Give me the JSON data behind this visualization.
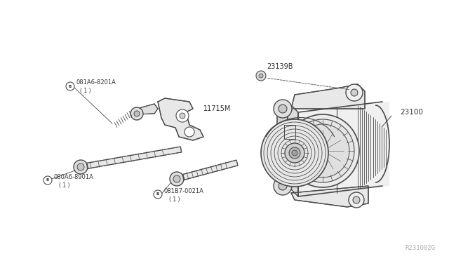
{
  "background_color": "#ffffff",
  "line_color": "#4a4a4a",
  "text_color": "#333333",
  "fig_width": 6.4,
  "fig_height": 3.72,
  "dpi": 100,
  "watermark": "R231002G",
  "label_23100": "23100",
  "label_23139B": "23139B",
  "label_11715M": "11715M",
  "label_081A6_8201A": "081A6-8201A",
  "label_080A6_8901A": "080A6-8901A",
  "label_081B7_0021A": "081B7-0021A",
  "label_qty": "( 1 )"
}
